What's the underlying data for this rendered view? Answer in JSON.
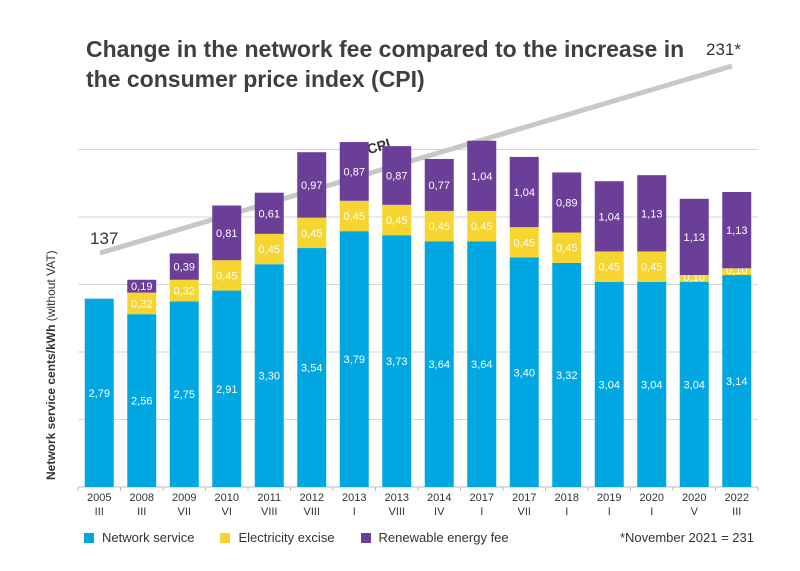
{
  "chart_data": {
    "type": "bar",
    "stacked": true,
    "title": "Change in the network fee compared to the increase in the consumer price index (CPI)",
    "ylabel_main": "Network service cents/kWh",
    "ylabel_sub": "(without VAT)",
    "categories": [
      {
        "year": "2005",
        "sub": "III"
      },
      {
        "year": "2008",
        "sub": "III"
      },
      {
        "year": "2009",
        "sub": "VII"
      },
      {
        "year": "2010",
        "sub": "VI"
      },
      {
        "year": "2011",
        "sub": "VIII"
      },
      {
        "year": "2012",
        "sub": "VIII"
      },
      {
        "year": "2013",
        "sub": "I"
      },
      {
        "year": "2013",
        "sub": "VIII"
      },
      {
        "year": "2014",
        "sub": "IV"
      },
      {
        "year": "2017",
        "sub": "I"
      },
      {
        "year": "2017",
        "sub": "VII"
      },
      {
        "year": "2018",
        "sub": "I"
      },
      {
        "year": "2019",
        "sub": "I"
      },
      {
        "year": "2020",
        "sub": "I"
      },
      {
        "year": "2020",
        "sub": "V"
      },
      {
        "year": "2022",
        "sub": "III"
      }
    ],
    "series": [
      {
        "name": "Network service",
        "color": "#00a7e1",
        "values": [
          2.79,
          2.56,
          2.75,
          2.91,
          3.3,
          3.54,
          3.79,
          3.73,
          3.64,
          3.64,
          3.4,
          3.32,
          3.04,
          3.04,
          3.04,
          3.14
        ],
        "labels": [
          "2,79",
          "2,56",
          "2,75",
          "2,91",
          "3,30",
          "3,54",
          "3,79",
          "3,73",
          "3,64",
          "3,64",
          "3,40",
          "3,32",
          "3,04",
          "3,04",
          "3,04",
          "3,14"
        ]
      },
      {
        "name": "Electricity excise",
        "color": "#f6d531",
        "values": [
          0,
          0.32,
          0.32,
          0.45,
          0.45,
          0.45,
          0.45,
          0.45,
          0.45,
          0.45,
          0.45,
          0.45,
          0.45,
          0.45,
          0.1,
          0.1
        ],
        "labels": [
          "",
          "0,32",
          "0,32",
          "0,45",
          "0,45",
          "0,45",
          "0,45",
          "0,45",
          "0,45",
          "0,45",
          "0,45",
          "0,45",
          "0,45",
          "0,45",
          "0,10",
          "0,10"
        ]
      },
      {
        "name": "Renewable energy fee",
        "color": "#6b3f98",
        "values": [
          0,
          0.19,
          0.39,
          0.81,
          0.61,
          0.97,
          0.87,
          0.87,
          0.77,
          1.04,
          1.04,
          0.89,
          1.04,
          1.13,
          1.13,
          1.13
        ],
        "labels": [
          "",
          "0,19",
          "0,39",
          "0,81",
          "0,61",
          "0,97",
          "0,87",
          "0,87",
          "0,77",
          "1,04",
          "1,04",
          "0,89",
          "1,04",
          "1,13",
          "1,13",
          "1,13"
        ]
      }
    ],
    "ylim": [
      0,
      6
    ],
    "grid": true,
    "cpi": {
      "label": "CPI",
      "start_value": 137,
      "end_value": 231,
      "start_label": "137",
      "end_label": "231*",
      "color": "#c8c8c8"
    },
    "legend_position": "bottom",
    "footnote": "*November 2021 = 231"
  }
}
